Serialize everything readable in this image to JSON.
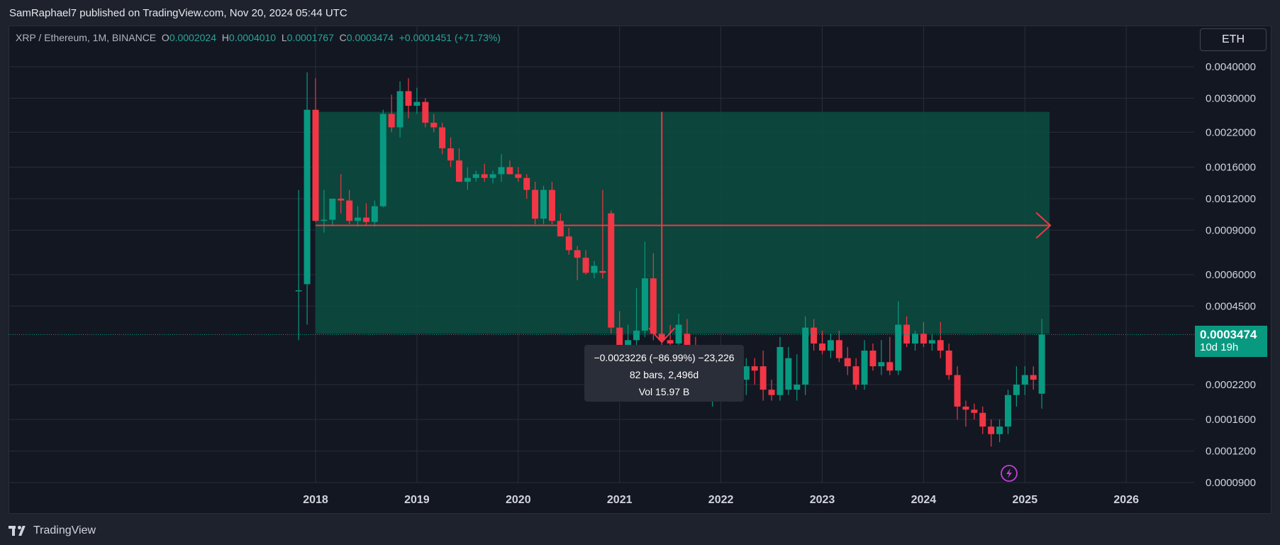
{
  "header": {
    "publisher_line": "SamRaphael7 published on TradingView.com, Nov 20, 2024 05:44 UTC"
  },
  "legend": {
    "symbol": "XRP / Ethereum, 1M, BINANCE",
    "open_label": "O",
    "open_value": "0.0002024",
    "high_label": "H",
    "high_value": "0.0004010",
    "low_label": "L",
    "low_value": "0.0001767",
    "close_label": "C",
    "close_value": "0.0003474",
    "change": "+0.0001451 (+71.73%)"
  },
  "currency": "ETH",
  "price_tag": {
    "price": "0.0003474",
    "countdown": "10d 19h"
  },
  "tooltip": {
    "line1": "−0.0023226 (−86.99%) −23,226",
    "line2": "82 bars, 2,496d",
    "line3": "Vol 15.97 B"
  },
  "brand": {
    "name": "TradingView"
  },
  "colors": {
    "up": "#089981",
    "down": "#f23645",
    "range_fill": "#0b4d40",
    "measure": "#f23645",
    "grid": "#2a2e39",
    "axis_text": "#b2b5be"
  },
  "chart_data": {
    "type": "candlestick",
    "title": "",
    "xlabel": "",
    "ylabel": "",
    "y_scale": "log",
    "ylim": [
      9e-05,
      0.0046
    ],
    "xlim": [
      "2017-06",
      "2026-12"
    ],
    "grid": true,
    "y_ticks": [
      "0.0040000",
      "0.0030000",
      "0.0022000",
      "0.0016000",
      "0.0012000",
      "0.0009000",
      "0.0006000",
      "0.0004500",
      "0.0002200",
      "0.0001600",
      "0.0001200",
      "0.0000900"
    ],
    "x_ticks": [
      "2018",
      "2019",
      "2020",
      "2021",
      "2022",
      "2023",
      "2024",
      "2025",
      "2026"
    ],
    "candles": [
      {
        "t": "2017-11",
        "o": 0.00052,
        "h": 0.0013,
        "l": 0.00033,
        "c": 0.00052
      },
      {
        "t": "2017-12",
        "o": 0.00055,
        "h": 0.0038,
        "l": 0.00038,
        "c": 0.0027
      },
      {
        "t": "2018-01",
        "o": 0.0027,
        "h": 0.0036,
        "l": 0.00097,
        "c": 0.00098
      },
      {
        "t": "2018-02",
        "o": 0.00098,
        "h": 0.0013,
        "l": 0.00088,
        "c": 0.00099
      },
      {
        "t": "2018-03",
        "o": 0.00099,
        "h": 0.0012,
        "l": 0.00094,
        "c": 0.0012
      },
      {
        "t": "2018-04",
        "o": 0.0012,
        "h": 0.0015,
        "l": 0.00105,
        "c": 0.00118
      },
      {
        "t": "2018-05",
        "o": 0.00118,
        "h": 0.0013,
        "l": 0.00095,
        "c": 0.00098
      },
      {
        "t": "2018-06",
        "o": 0.00098,
        "h": 0.00112,
        "l": 0.00093,
        "c": 0.00101
      },
      {
        "t": "2018-07",
        "o": 0.00101,
        "h": 0.00115,
        "l": 0.00094,
        "c": 0.00097
      },
      {
        "t": "2018-08",
        "o": 0.00097,
        "h": 0.00118,
        "l": 0.00093,
        "c": 0.00112
      },
      {
        "t": "2018-09",
        "o": 0.00112,
        "h": 0.0027,
        "l": 0.00111,
        "c": 0.0026
      },
      {
        "t": "2018-10",
        "o": 0.0026,
        "h": 0.0031,
        "l": 0.0022,
        "c": 0.0023
      },
      {
        "t": "2018-11",
        "o": 0.0023,
        "h": 0.0035,
        "l": 0.0021,
        "c": 0.0032
      },
      {
        "t": "2018-12",
        "o": 0.0032,
        "h": 0.0036,
        "l": 0.0025,
        "c": 0.0028
      },
      {
        "t": "2019-01",
        "o": 0.0028,
        "h": 0.0033,
        "l": 0.0026,
        "c": 0.0029
      },
      {
        "t": "2019-02",
        "o": 0.0029,
        "h": 0.003,
        "l": 0.0023,
        "c": 0.0024
      },
      {
        "t": "2019-03",
        "o": 0.0024,
        "h": 0.0026,
        "l": 0.0022,
        "c": 0.0023
      },
      {
        "t": "2019-04",
        "o": 0.0023,
        "h": 0.0024,
        "l": 0.0018,
        "c": 0.0019
      },
      {
        "t": "2019-05",
        "o": 0.0019,
        "h": 0.0021,
        "l": 0.0016,
        "c": 0.0017
      },
      {
        "t": "2019-06",
        "o": 0.0017,
        "h": 0.0019,
        "l": 0.0014,
        "c": 0.0014
      },
      {
        "t": "2019-07",
        "o": 0.0014,
        "h": 0.0016,
        "l": 0.0013,
        "c": 0.00145
      },
      {
        "t": "2019-08",
        "o": 0.00145,
        "h": 0.00155,
        "l": 0.0014,
        "c": 0.0015
      },
      {
        "t": "2019-09",
        "o": 0.0015,
        "h": 0.00165,
        "l": 0.0014,
        "c": 0.00145
      },
      {
        "t": "2019-10",
        "o": 0.00145,
        "h": 0.00155,
        "l": 0.00138,
        "c": 0.0015
      },
      {
        "t": "2019-11",
        "o": 0.0015,
        "h": 0.0018,
        "l": 0.0014,
        "c": 0.0016
      },
      {
        "t": "2019-12",
        "o": 0.0016,
        "h": 0.0017,
        "l": 0.0015,
        "c": 0.0015
      },
      {
        "t": "2020-01",
        "o": 0.0015,
        "h": 0.0016,
        "l": 0.0014,
        "c": 0.00145
      },
      {
        "t": "2020-02",
        "o": 0.00145,
        "h": 0.0015,
        "l": 0.0012,
        "c": 0.0013
      },
      {
        "t": "2020-03",
        "o": 0.0013,
        "h": 0.0014,
        "l": 0.00095,
        "c": 0.001
      },
      {
        "t": "2020-04",
        "o": 0.001,
        "h": 0.00135,
        "l": 0.00095,
        "c": 0.0013
      },
      {
        "t": "2020-05",
        "o": 0.0013,
        "h": 0.0014,
        "l": 0.00095,
        "c": 0.00098
      },
      {
        "t": "2020-06",
        "o": 0.00098,
        "h": 0.00105,
        "l": 0.00088,
        "c": 0.00085
      },
      {
        "t": "2020-07",
        "o": 0.00085,
        "h": 0.00092,
        "l": 0.00072,
        "c": 0.00075
      },
      {
        "t": "2020-08",
        "o": 0.00075,
        "h": 0.00078,
        "l": 0.00057,
        "c": 0.0007
      },
      {
        "t": "2020-09",
        "o": 0.0007,
        "h": 0.00075,
        "l": 0.0006,
        "c": 0.00061
      },
      {
        "t": "2020-10",
        "o": 0.00061,
        "h": 0.00068,
        "l": 0.00058,
        "c": 0.00065
      },
      {
        "t": "2020-11",
        "o": 0.00062,
        "h": 0.0013,
        "l": 0.00058,
        "c": 0.00061
      },
      {
        "t": "2020-12",
        "o": 0.00105,
        "h": 0.00108,
        "l": 0.00035,
        "c": 0.00037
      },
      {
        "t": "2021-01",
        "o": 0.00037,
        "h": 0.00043,
        "l": 0.00027,
        "c": 0.0003
      },
      {
        "t": "2021-02",
        "o": 0.0003,
        "h": 0.00038,
        "l": 0.00026,
        "c": 0.00033
      },
      {
        "t": "2021-03",
        "o": 0.00033,
        "h": 0.00053,
        "l": 0.00031,
        "c": 0.00036
      },
      {
        "t": "2021-04",
        "o": 0.00036,
        "h": 0.00081,
        "l": 0.00034,
        "c": 0.00058
      },
      {
        "t": "2021-05",
        "o": 0.00058,
        "h": 0.00073,
        "l": 0.00033,
        "c": 0.00035
      },
      {
        "t": "2021-06",
        "o": 0.00035,
        "h": 0.00039,
        "l": 0.0003,
        "c": 0.00033
      },
      {
        "t": "2021-07",
        "o": 0.00033,
        "h": 0.00038,
        "l": 0.00029,
        "c": 0.00032
      },
      {
        "t": "2021-08",
        "o": 0.00032,
        "h": 0.00042,
        "l": 0.0003,
        "c": 0.00038
      },
      {
        "t": "2021-09",
        "o": 0.00035,
        "h": 0.0004,
        "l": 0.00028,
        "c": 0.00031
      },
      {
        "t": "2021-10",
        "o": 0.00031,
        "h": 0.00034,
        "l": 0.00025,
        "c": 0.00026
      },
      {
        "t": "2021-11",
        "o": 0.00026,
        "h": 0.00029,
        "l": 0.00019,
        "c": 0.00023
      },
      {
        "t": "2021-12",
        "o": 0.00023,
        "h": 0.00028,
        "l": 0.00018,
        "c": 0.00024
      },
      {
        "t": "2022-01",
        "o": 0.00024,
        "h": 0.00029,
        "l": 0.00022,
        "c": 0.00025
      },
      {
        "t": "2022-02",
        "o": 0.00025,
        "h": 0.00028,
        "l": 0.00022,
        "c": 0.00024
      },
      {
        "t": "2022-03",
        "o": 0.00024,
        "h": 0.00027,
        "l": 0.00022,
        "c": 0.00023
      },
      {
        "t": "2022-04",
        "o": 0.00023,
        "h": 0.00028,
        "l": 0.0002,
        "c": 0.00026
      },
      {
        "t": "2022-05",
        "o": 0.00026,
        "h": 0.00028,
        "l": 0.00022,
        "c": 0.00025
      },
      {
        "t": "2022-06",
        "o": 0.00026,
        "h": 0.0003,
        "l": 0.00019,
        "c": 0.00021
      },
      {
        "t": "2022-07",
        "o": 0.00021,
        "h": 0.00023,
        "l": 0.00019,
        "c": 0.0002
      },
      {
        "t": "2022-08",
        "o": 0.0002,
        "h": 0.00034,
        "l": 0.00019,
        "c": 0.00031
      },
      {
        "t": "2022-09",
        "o": 0.00021,
        "h": 0.00031,
        "l": 0.0002,
        "c": 0.00028
      },
      {
        "t": "2022-10",
        "o": 0.00021,
        "h": 0.00029,
        "l": 0.00019,
        "c": 0.00022
      },
      {
        "t": "2022-11",
        "o": 0.00022,
        "h": 0.00041,
        "l": 0.0002,
        "c": 0.00037
      },
      {
        "t": "2022-12",
        "o": 0.00037,
        "h": 0.0004,
        "l": 0.0003,
        "c": 0.00032
      },
      {
        "t": "2023-01",
        "o": 0.00032,
        "h": 0.00036,
        "l": 0.00029,
        "c": 0.0003
      },
      {
        "t": "2023-02",
        "o": 0.0003,
        "h": 0.00035,
        "l": 0.00028,
        "c": 0.00033
      },
      {
        "t": "2023-03",
        "o": 0.00033,
        "h": 0.00036,
        "l": 0.00027,
        "c": 0.00028
      },
      {
        "t": "2023-04",
        "o": 0.00028,
        "h": 0.00031,
        "l": 0.00024,
        "c": 0.00026
      },
      {
        "t": "2023-05",
        "o": 0.00026,
        "h": 0.00028,
        "l": 0.00021,
        "c": 0.00022
      },
      {
        "t": "2023-06",
        "o": 0.00022,
        "h": 0.00033,
        "l": 0.00021,
        "c": 0.0003
      },
      {
        "t": "2023-07",
        "o": 0.0003,
        "h": 0.00032,
        "l": 0.00025,
        "c": 0.00026
      },
      {
        "t": "2023-08",
        "o": 0.00026,
        "h": 0.00033,
        "l": 0.00024,
        "c": 0.00027
      },
      {
        "t": "2023-09",
        "o": 0.00027,
        "h": 0.00034,
        "l": 0.00024,
        "c": 0.00025
      },
      {
        "t": "2023-10",
        "o": 0.00025,
        "h": 0.00047,
        "l": 0.00024,
        "c": 0.00038
      },
      {
        "t": "2023-11",
        "o": 0.00038,
        "h": 0.00041,
        "l": 0.00031,
        "c": 0.00032
      },
      {
        "t": "2023-12",
        "o": 0.00032,
        "h": 0.00036,
        "l": 0.0003,
        "c": 0.00035
      },
      {
        "t": "2024-01",
        "o": 0.00035,
        "h": 0.00039,
        "l": 0.00031,
        "c": 0.00032
      },
      {
        "t": "2024-02",
        "o": 0.00032,
        "h": 0.00035,
        "l": 0.0003,
        "c": 0.00033
      },
      {
        "t": "2024-03",
        "o": 0.00033,
        "h": 0.00039,
        "l": 0.00028,
        "c": 0.0003
      },
      {
        "t": "2024-04",
        "o": 0.0003,
        "h": 0.00032,
        "l": 0.00023,
        "c": 0.00024
      },
      {
        "t": "2024-05",
        "o": 0.00024,
        "h": 0.00026,
        "l": 0.00016,
        "c": 0.00018
      },
      {
        "t": "2024-06",
        "o": 0.00018,
        "h": 0.00019,
        "l": 0.00015,
        "c": 0.000175
      },
      {
        "t": "2024-07",
        "o": 0.000175,
        "h": 0.000185,
        "l": 0.00016,
        "c": 0.00017
      },
      {
        "t": "2024-08",
        "o": 0.00017,
        "h": 0.00018,
        "l": 0.00014,
        "c": 0.00015
      },
      {
        "t": "2024-09",
        "o": 0.00015,
        "h": 0.00016,
        "l": 0.000125,
        "c": 0.00014
      },
      {
        "t": "2024-10",
        "o": 0.00014,
        "h": 0.00016,
        "l": 0.00013,
        "c": 0.00015
      },
      {
        "t": "2024-11",
        "o": 0.00015,
        "h": 0.00021,
        "l": 0.00014,
        "c": 0.0002
      },
      {
        "t": "2024-12",
        "o": 0.0002,
        "h": 0.00026,
        "l": 0.00018,
        "c": 0.00022
      },
      {
        "t": "2025-01",
        "o": 0.00022,
        "h": 0.00026,
        "l": 0.0002,
        "c": 0.00024
      },
      {
        "t": "2025-02",
        "o": 0.00024,
        "h": 0.00026,
        "l": 0.00021,
        "c": 0.00023
      },
      {
        "t": "2025-03",
        "o": 0.0002024,
        "h": 0.000401,
        "l": 0.0001767,
        "c": 0.0003474
      }
    ],
    "ranges": [
      {
        "from": "2018-01",
        "to": "2025-03",
        "top": 0.00265,
        "bottom": 0.00035
      }
    ],
    "measure": {
      "horizontal": {
        "from": "2018-01",
        "to": "2025-03",
        "price": 0.00094
      },
      "vertical": {
        "t": "2021-06",
        "from": 0.00265,
        "to": 0.00035
      }
    },
    "last_price": 0.0003474
  }
}
